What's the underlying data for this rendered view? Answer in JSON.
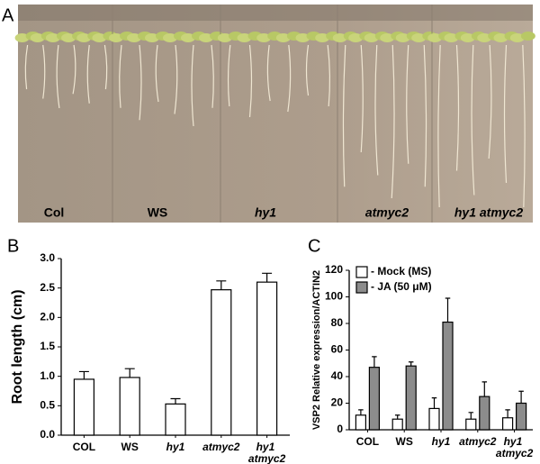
{
  "panel_labels": [
    "A",
    "B",
    "C"
  ],
  "photo_labels": [
    "Col",
    "WS",
    "hy1",
    "atmyc2",
    "hy1 atmyc2"
  ],
  "chart_data": [
    {
      "type": "bar",
      "ylabel": "Root length (cm)",
      "categories": [
        "COL",
        "WS",
        "hy1",
        "atmyc2",
        "hy1 atmyc2"
      ],
      "values": [
        0.95,
        0.98,
        0.53,
        2.47,
        2.6
      ],
      "errors": [
        0.13,
        0.15,
        0.09,
        0.15,
        0.15
      ],
      "color": "#ffffff",
      "ylim": [
        0,
        3
      ],
      "yticks": [
        {
          "value": 0,
          "label": "0.0"
        },
        0.5,
        {
          "value": 1,
          "label": "1.0"
        },
        1.5,
        {
          "value": 2,
          "label": "2.0"
        },
        2.5,
        {
          "value": 3,
          "label": "3.0"
        }
      ]
    },
    {
      "type": "bar",
      "ylabel": "VSP2 Relative expression/ACTIN2",
      "categories": [
        "COL",
        "WS",
        "hy1",
        "atmyc2",
        "hy1 atmyc2"
      ],
      "series": [
        {
          "name": "- Mock (MS)",
          "color": "#ffffff",
          "values": [
            11,
            8,
            16,
            8,
            9
          ],
          "errors": [
            4,
            3,
            8,
            5,
            6
          ]
        },
        {
          "name": "- JA (50 μM)",
          "color": "#8c8c8c",
          "values": [
            47,
            48,
            81,
            25,
            20
          ],
          "errors": [
            8,
            3,
            18,
            11,
            9
          ]
        }
      ],
      "ylim": [
        0,
        120
      ],
      "yticks": [
        0,
        20,
        40,
        60,
        80,
        100,
        120
      ]
    }
  ]
}
